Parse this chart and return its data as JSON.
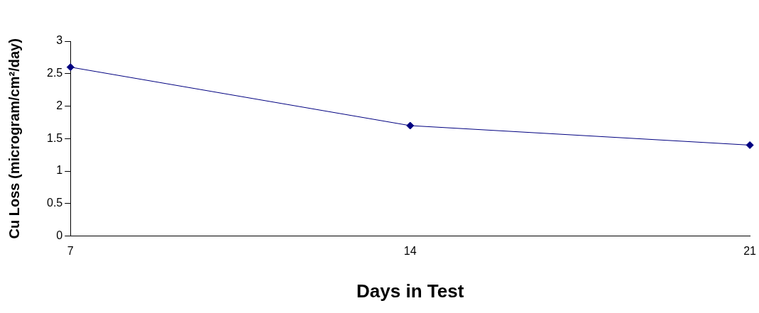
{
  "chart_data": {
    "type": "line",
    "xlabel": "Days in Test",
    "ylabel": "Cu Loss (microgram/cm²/day)",
    "categories": [
      "7",
      "14",
      "21"
    ],
    "series": [
      {
        "color": "#000080",
        "values": [
          2.6,
          1.7,
          1.4
        ]
      }
    ],
    "ylim": [
      0,
      3
    ],
    "yticks": [
      0,
      0.5,
      1,
      1.5,
      2,
      2.5,
      3
    ],
    "grid": false,
    "legend": false,
    "marker": "diamond",
    "line_style": "solid"
  }
}
